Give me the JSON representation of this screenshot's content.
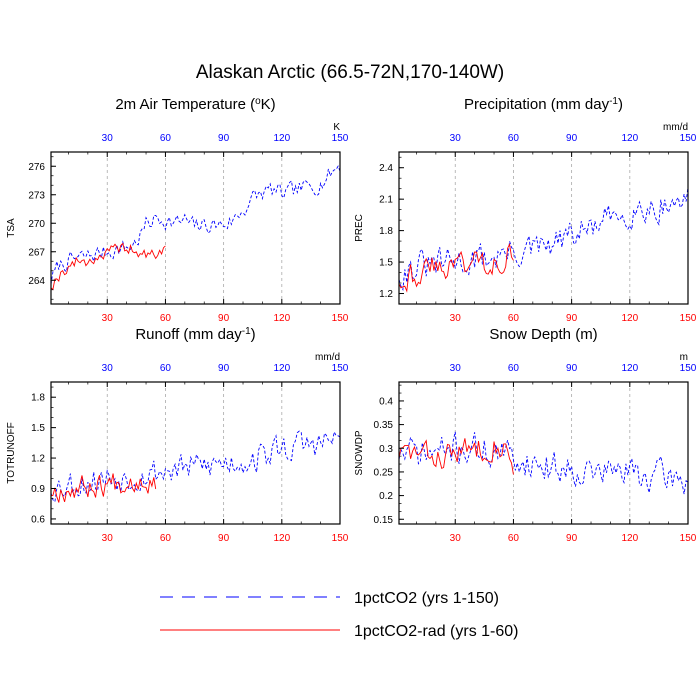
{
  "title": "Alaskan Arctic (66.5-72N,170-140W)",
  "legend": {
    "placement": "bottom-center",
    "items": [
      {
        "label": "1pctCO2 (yrs 1-150)",
        "color": "#0000ff",
        "style": "dashed"
      },
      {
        "label": "1pctCO2-rad (yrs 1-60)",
        "color": "#ff0000",
        "style": "solid"
      }
    ]
  },
  "colors": {
    "top_axis_ticks": "#0000ff",
    "bottom_axis_ticks": "#ff0000",
    "gridline": "#aaaaaa"
  },
  "chart_data": [
    {
      "type": "line",
      "title": "2m Air Temperature (",
      "title_sup": "o",
      "title_end": "K)",
      "ylabel": "TSA",
      "unit": "K",
      "xlim": [
        1,
        150
      ],
      "ylim": [
        261.5,
        277.5
      ],
      "yticks": [
        264,
        267,
        270,
        273,
        276
      ],
      "xticks": [
        30,
        60,
        90,
        120,
        150
      ],
      "grid": "vertical dashed at x ticks",
      "series": [
        {
          "name": "1pctCO2 (yrs 1-150)",
          "color": "#0000ff",
          "dash": "3,2",
          "anchors": [
            [
              1,
              264
            ],
            [
              5,
              265.5
            ],
            [
              10,
              266
            ],
            [
              15,
              266.3
            ],
            [
              20,
              266.5
            ],
            [
              25,
              266.8
            ],
            [
              30,
              267
            ],
            [
              35,
              267.3
            ],
            [
              40,
              267.4
            ],
            [
              45,
              268
            ],
            [
              50,
              269.8
            ],
            [
              55,
              270.5
            ],
            [
              60,
              270.4
            ],
            [
              65,
              270
            ],
            [
              70,
              270.3
            ],
            [
              75,
              269.6
            ],
            [
              80,
              269.8
            ],
            [
              85,
              269.8
            ],
            [
              90,
              269.9
            ],
            [
              95,
              270.3
            ],
            [
              100,
              271.4
            ],
            [
              105,
              272.6
            ],
            [
              110,
              273.2
            ],
            [
              115,
              273.5
            ],
            [
              120,
              273
            ],
            [
              125,
              273.3
            ],
            [
              130,
              273.6
            ],
            [
              135,
              273.9
            ],
            [
              140,
              274.2
            ],
            [
              145,
              275.2
            ],
            [
              150,
              276.2
            ]
          ],
          "amp": 1.35,
          "seed": 7
        },
        {
          "name": "1pctCO2-rad (yrs 1-60)",
          "color": "#ff0000",
          "dash": "",
          "anchors": [
            [
              1,
              263.5
            ],
            [
              5,
              264.5
            ],
            [
              10,
              265.5
            ],
            [
              15,
              266
            ],
            [
              20,
              266
            ],
            [
              25,
              266.5
            ],
            [
              30,
              266.8
            ],
            [
              35,
              267.2
            ],
            [
              40,
              267.5
            ],
            [
              45,
              267
            ],
            [
              50,
              266.5
            ],
            [
              55,
              266.8
            ],
            [
              60,
              267.2
            ]
          ],
          "amp": 1.0,
          "seed": 19
        }
      ]
    },
    {
      "type": "line",
      "title": "Precipitation (mm day",
      "title_sup": "-1",
      "title_end": ")",
      "ylabel": "PREC",
      "unit": "mm/d",
      "xlim": [
        1,
        150
      ],
      "ylim": [
        1.1,
        2.55
      ],
      "yticks": [
        1.2,
        1.5,
        1.8,
        2.1,
        2.4
      ],
      "xticks": [
        30,
        60,
        90,
        120,
        150
      ],
      "grid": "vertical dashed at x ticks",
      "series": [
        {
          "name": "1pctCO2 (yrs 1-150)",
          "color": "#0000ff",
          "dash": "3,2",
          "anchors": [
            [
              1,
              1.4
            ],
            [
              10,
              1.45
            ],
            [
              20,
              1.47
            ],
            [
              30,
              1.5
            ],
            [
              40,
              1.52
            ],
            [
              50,
              1.55
            ],
            [
              60,
              1.6
            ],
            [
              70,
              1.6
            ],
            [
              80,
              1.65
            ],
            [
              90,
              1.75
            ],
            [
              100,
              1.82
            ],
            [
              110,
              1.9
            ],
            [
              120,
              2.0
            ],
            [
              130,
              2.02
            ],
            [
              140,
              2.05
            ],
            [
              150,
              2.1
            ]
          ],
          "amp": 0.22,
          "seed": 31
        },
        {
          "name": "1pctCO2-rad (yrs 1-60)",
          "color": "#ff0000",
          "dash": "",
          "anchors": [
            [
              1,
              1.35
            ],
            [
              10,
              1.4
            ],
            [
              20,
              1.45
            ],
            [
              30,
              1.5
            ],
            [
              40,
              1.5
            ],
            [
              50,
              1.52
            ],
            [
              60,
              1.6
            ]
          ],
          "amp": 0.2,
          "seed": 43
        }
      ]
    },
    {
      "type": "line",
      "title": "Runoff (mm day",
      "title_sup": "-1",
      "title_end": ")",
      "ylabel": "TOTRUNOFF",
      "unit": "mm/d",
      "xlim": [
        1,
        150
      ],
      "ylim": [
        0.55,
        1.95
      ],
      "yticks": [
        0.6,
        0.9,
        1.2,
        1.5,
        1.8
      ],
      "xticks": [
        30,
        60,
        90,
        120,
        150
      ],
      "grid": "vertical dashed at x ticks",
      "series": [
        {
          "name": "1pctCO2 (yrs 1-150)",
          "color": "#0000ff",
          "dash": "3,2",
          "anchors": [
            [
              1,
              0.92
            ],
            [
              10,
              0.95
            ],
            [
              20,
              0.97
            ],
            [
              30,
              1.0
            ],
            [
              40,
              1.02
            ],
            [
              50,
              1.05
            ],
            [
              60,
              1.08
            ],
            [
              70,
              1.1
            ],
            [
              80,
              1.12
            ],
            [
              90,
              1.15
            ],
            [
              100,
              1.18
            ],
            [
              110,
              1.22
            ],
            [
              120,
              1.3
            ],
            [
              130,
              1.32
            ],
            [
              140,
              1.35
            ],
            [
              150,
              1.38
            ]
          ],
          "amp": 0.22,
          "seed": 53
        },
        {
          "name": "1pctCO2-rad (yrs 1-60)",
          "color": "#ff0000",
          "dash": "",
          "anchors": [
            [
              1,
              0.88
            ],
            [
              10,
              0.9
            ],
            [
              20,
              0.92
            ],
            [
              30,
              0.95
            ],
            [
              40,
              0.98
            ],
            [
              50,
              1.0
            ],
            [
              55,
              0.95
            ]
          ],
          "amp": 0.18,
          "seed": 67
        }
      ]
    },
    {
      "type": "line",
      "title": "Snow Depth (m)",
      "title_sup": "",
      "title_end": "",
      "ylabel": "SNOWDP",
      "unit": "m",
      "xlim": [
        1,
        150
      ],
      "ylim": [
        0.14,
        0.44
      ],
      "yticks": [
        0.15,
        0.2,
        0.25,
        0.3,
        0.35,
        0.4
      ],
      "xticks": [
        30,
        60,
        90,
        120,
        150
      ],
      "grid": "vertical dashed at x ticks",
      "series": [
        {
          "name": "1pctCO2 (yrs 1-150)",
          "color": "#0000ff",
          "dash": "3,2",
          "anchors": [
            [
              1,
              0.29
            ],
            [
              10,
              0.29
            ],
            [
              20,
              0.29
            ],
            [
              30,
              0.3
            ],
            [
              40,
              0.3
            ],
            [
              50,
              0.29
            ],
            [
              60,
              0.28
            ],
            [
              70,
              0.27
            ],
            [
              80,
              0.26
            ],
            [
              90,
              0.26
            ],
            [
              100,
              0.25
            ],
            [
              110,
              0.25
            ],
            [
              120,
              0.25
            ],
            [
              130,
              0.24
            ],
            [
              140,
              0.24
            ],
            [
              150,
              0.23
            ]
          ],
          "amp": 0.05,
          "seed": 71
        },
        {
          "name": "1pctCO2-rad (yrs 1-60)",
          "color": "#ff0000",
          "dash": "",
          "anchors": [
            [
              1,
              0.29
            ],
            [
              10,
              0.29
            ],
            [
              20,
              0.28
            ],
            [
              30,
              0.29
            ],
            [
              40,
              0.3
            ],
            [
              50,
              0.31
            ],
            [
              55,
              0.3
            ],
            [
              60,
              0.27
            ]
          ],
          "amp": 0.04,
          "seed": 83
        }
      ]
    }
  ]
}
